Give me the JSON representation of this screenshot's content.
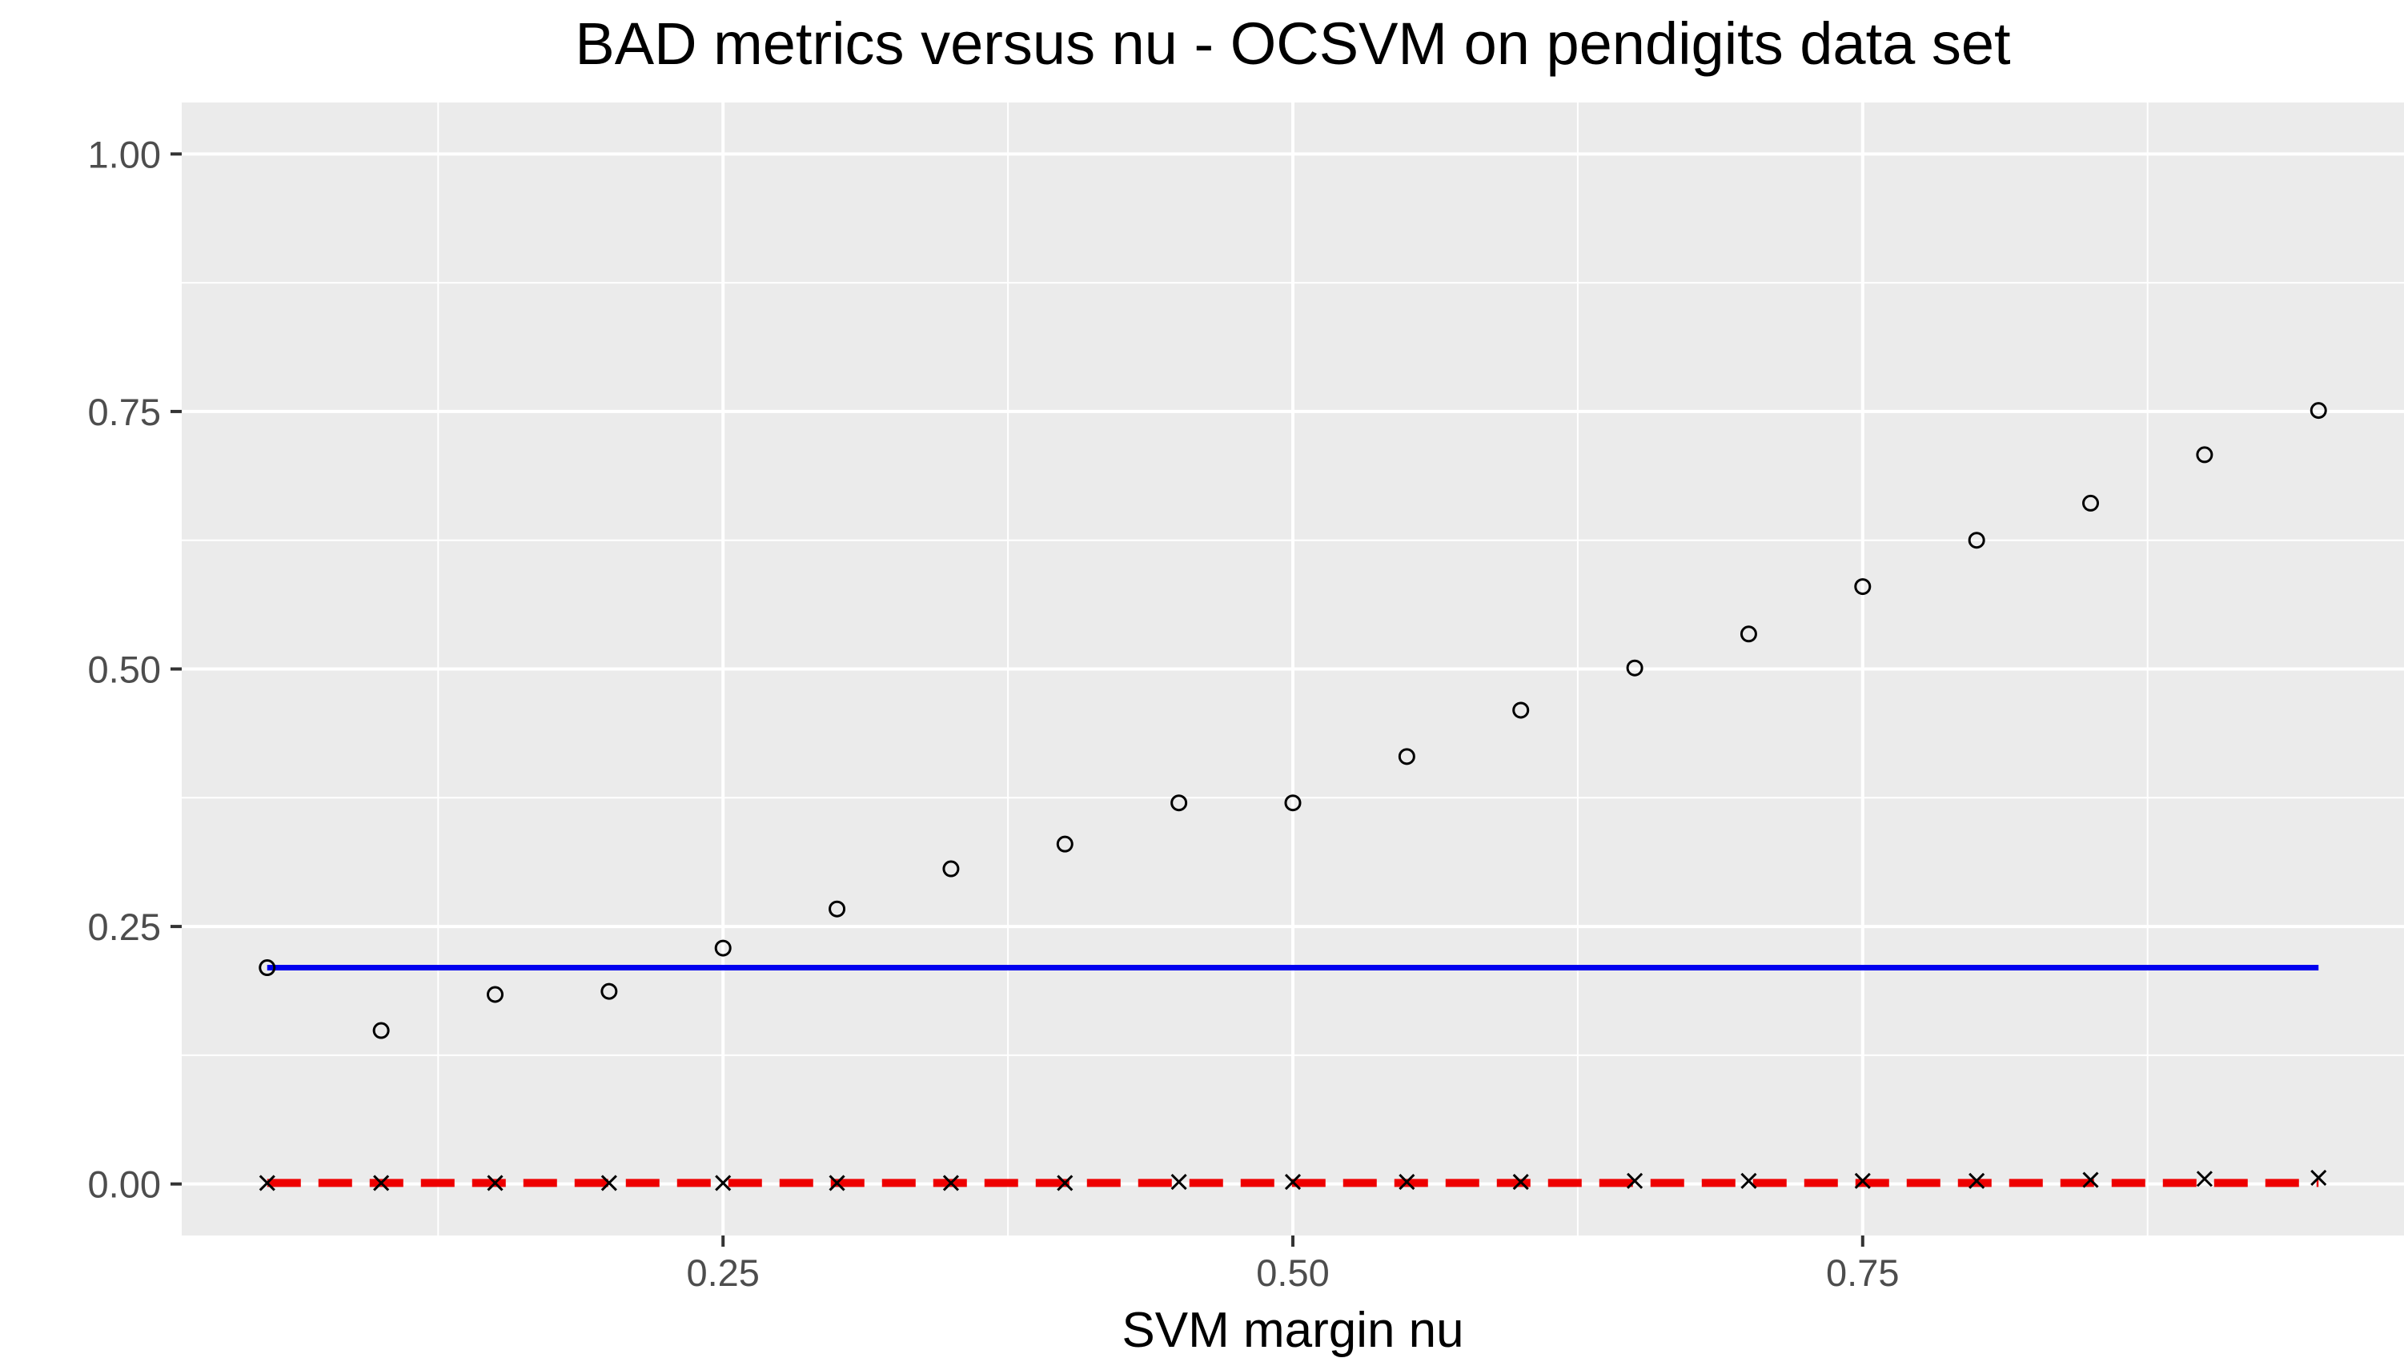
{
  "chart_data": {
    "type": "scatter",
    "title": "BAD metrics versus nu - OCSVM on pendigits data set",
    "xlabel": "SVM margin nu",
    "ylabel": "",
    "xlim": [
      0.0125,
      0.9875
    ],
    "ylim": [
      -0.05,
      1.05
    ],
    "x_ticks": [
      0.25,
      0.5,
      0.75
    ],
    "x_tick_labels": [
      "0.25",
      "0.50",
      "0.75"
    ],
    "x_minor_grid": [
      0.125,
      0.375,
      0.625,
      0.875
    ],
    "y_ticks": [
      0,
      0.25,
      0.5,
      0.75,
      1.0
    ],
    "y_tick_labels": [
      "0.00",
      "0.25",
      "0.50",
      "0.75",
      "1.00"
    ],
    "y_minor_grid": [
      0.125,
      0.375,
      0.625,
      0.875
    ],
    "grid": true,
    "legend": "none",
    "series": [
      {
        "marker": "open-circle",
        "color": "#000000",
        "x": [
          0.05,
          0.1,
          0.15,
          0.2,
          0.25,
          0.3,
          0.35,
          0.4,
          0.45,
          0.5,
          0.55,
          0.6,
          0.65,
          0.7,
          0.75,
          0.8,
          0.85,
          0.9,
          0.95
        ],
        "y": [
          0.21,
          0.149,
          0.184,
          0.187,
          0.229,
          0.267,
          0.306,
          0.33,
          0.37,
          0.37,
          0.415,
          0.46,
          0.501,
          0.534,
          0.58,
          0.625,
          0.661,
          0.708,
          0.751
        ]
      },
      {
        "marker": "cross",
        "color": "#000000",
        "x": [
          0.05,
          0.1,
          0.15,
          0.2,
          0.25,
          0.3,
          0.35,
          0.4,
          0.45,
          0.5,
          0.55,
          0.6,
          0.65,
          0.7,
          0.75,
          0.8,
          0.85,
          0.9,
          0.95
        ],
        "y": [
          0.001,
          0.001,
          0.001,
          0.001,
          0.001,
          0.001,
          0.001,
          0.001,
          0.002,
          0.002,
          0.002,
          0.002,
          0.003,
          0.003,
          0.003,
          0.003,
          0.004,
          0.005,
          0.006
        ]
      }
    ],
    "reference_lines": [
      {
        "style": "solid",
        "color": "#0000ee",
        "x": [
          0.05,
          0.95
        ],
        "y": [
          0.21,
          0.21
        ]
      },
      {
        "style": "dashed",
        "color": "#ee0000",
        "x": [
          0.05,
          0.95
        ],
        "y": [
          0.001,
          0.001
        ]
      }
    ]
  }
}
